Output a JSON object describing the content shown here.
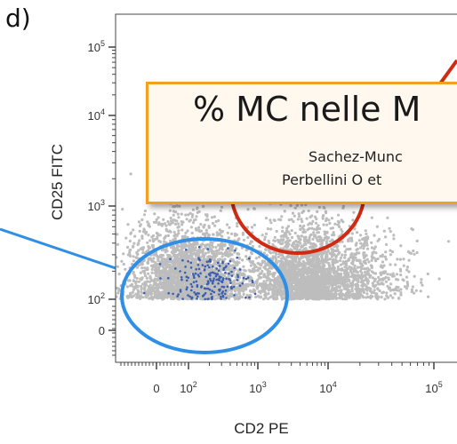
{
  "panel_label": "d)",
  "chart_data": {
    "type": "scatter",
    "xlabel": "CD2 PE",
    "ylabel": "CD25 FITC",
    "x_ticks": [
      {
        "base": "0",
        "exp": ""
      },
      {
        "base": "10",
        "exp": "2"
      },
      {
        "base": "10",
        "exp": "3"
      },
      {
        "base": "10",
        "exp": "4"
      },
      {
        "base": "10",
        "exp": "5"
      }
    ],
    "y_ticks": [
      {
        "base": "0",
        "exp": ""
      },
      {
        "base": "10",
        "exp": "2"
      },
      {
        "base": "10",
        "exp": "3"
      },
      {
        "base": "10",
        "exp": "4"
      },
      {
        "base": "10",
        "exp": "5"
      }
    ],
    "axis_scale": "biexponential",
    "populations": [
      {
        "name": "",
        "color": "#bdbdbd",
        "center_log": [
          2.0,
          2.0
        ]
      },
      {
        "name": "",
        "color": "#bdbdbd",
        "center_log": [
          3.8,
          2.0
        ]
      },
      {
        "name": "",
        "color": "#3a5fb0",
        "center_log": [
          2.3,
          2.2
        ]
      },
      {
        "name": "",
        "color": "#cc2a1a",
        "center_log": [
          3.0,
          3.2
        ]
      }
    ],
    "gates": [
      {
        "color": "#2f8fe6",
        "population": "blue"
      },
      {
        "color": "#d02a12",
        "population": "red"
      }
    ]
  },
  "callout": {
    "title": "% MC nelle M",
    "line1": "Sachez-Munc",
    "line2": "Perbellini O et",
    "border_color": "#f2a020"
  }
}
